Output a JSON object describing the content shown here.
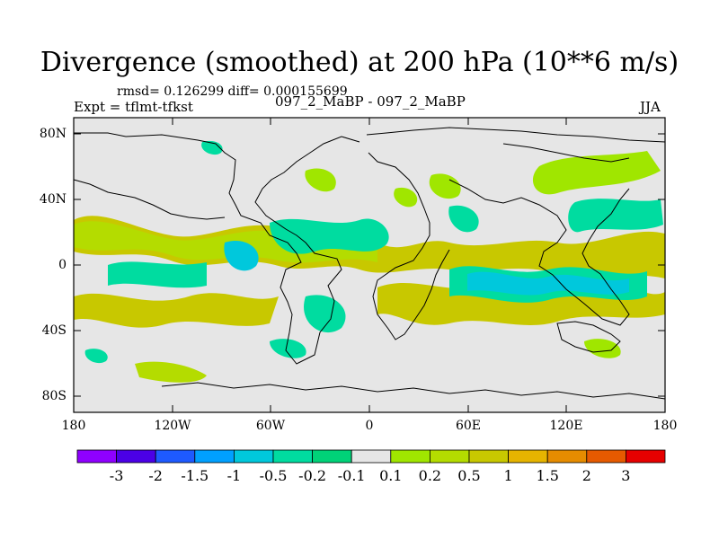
{
  "title": "Divergence (smoothed) at 200 hPa (10**6 m/s)",
  "stats": "rmsd= 0.126299 diff= 0.000155699",
  "experiment": "Expt = tflmt-tfkst",
  "comparison": "097_2_MaBP - 097_2_MaBP",
  "season": "JJA",
  "y_tick_labels": [
    "80N",
    "40N",
    "0",
    "40S",
    "80S"
  ],
  "x_tick_labels": [
    "180",
    "120W",
    "60W",
    "0",
    "60E",
    "120E",
    "180"
  ],
  "colorbar": {
    "colors": [
      "#8f00ff",
      "#4b00e6",
      "#1e5aff",
      "#00a0ff",
      "#00c8dc",
      "#00dca0",
      "#00d278",
      "#e6e6e6",
      "#a0e600",
      "#b4dc00",
      "#c8c800",
      "#e6b400",
      "#e68c00",
      "#e65a00",
      "#e60000"
    ],
    "labels": [
      "-3",
      "-2",
      "-1.5",
      "-1",
      "-0.5",
      "-0.2",
      "-0.1",
      "0.1",
      "0.2",
      "0.5",
      "1",
      "1.5",
      "2",
      "3"
    ]
  },
  "map_fill_color": "#e6e6e6"
}
